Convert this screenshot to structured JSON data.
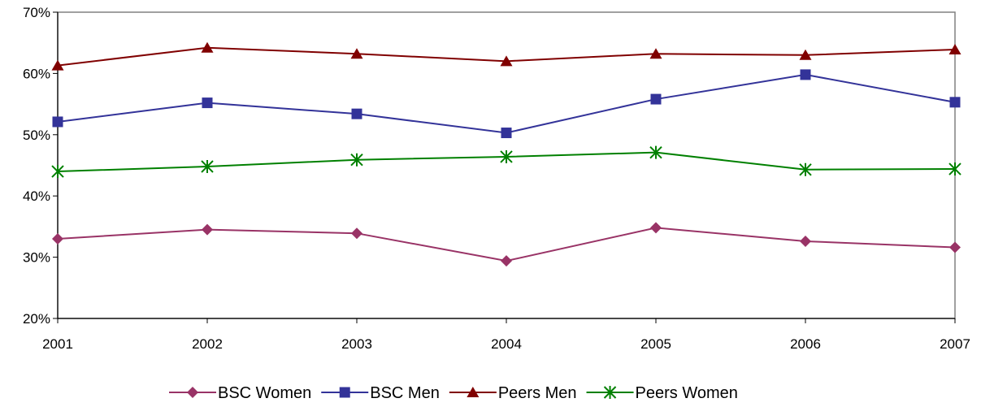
{
  "chart_data": {
    "type": "line",
    "title": "",
    "xlabel": "",
    "ylabel": "",
    "x": [
      "2001",
      "2002",
      "2003",
      "2004",
      "2005",
      "2006",
      "2007"
    ],
    "ylim": [
      20,
      70
    ],
    "yticks": [
      20,
      30,
      40,
      50,
      60,
      70
    ],
    "ytick_labels": [
      "20%",
      "30%",
      "40%",
      "50%",
      "60%",
      "70%"
    ],
    "grid": false,
    "legend_position": "bottom",
    "series": [
      {
        "name": "BSC Women",
        "color": "#993366",
        "marker": "diamond",
        "values": [
          33.0,
          34.5,
          33.9,
          29.4,
          34.8,
          32.6,
          31.6
        ]
      },
      {
        "name": "BSC Men",
        "color": "#333399",
        "marker": "square",
        "values": [
          52.1,
          55.2,
          53.4,
          50.3,
          55.8,
          59.8,
          55.3
        ]
      },
      {
        "name": "Peers Men",
        "color": "#800000",
        "marker": "triangle",
        "values": [
          61.3,
          64.2,
          63.2,
          62.0,
          63.2,
          63.0,
          63.9
        ]
      },
      {
        "name": "Peers Women",
        "color": "#008000",
        "marker": "asterisk",
        "values": [
          44.0,
          44.8,
          45.9,
          46.4,
          47.1,
          44.3,
          44.4
        ]
      }
    ]
  }
}
